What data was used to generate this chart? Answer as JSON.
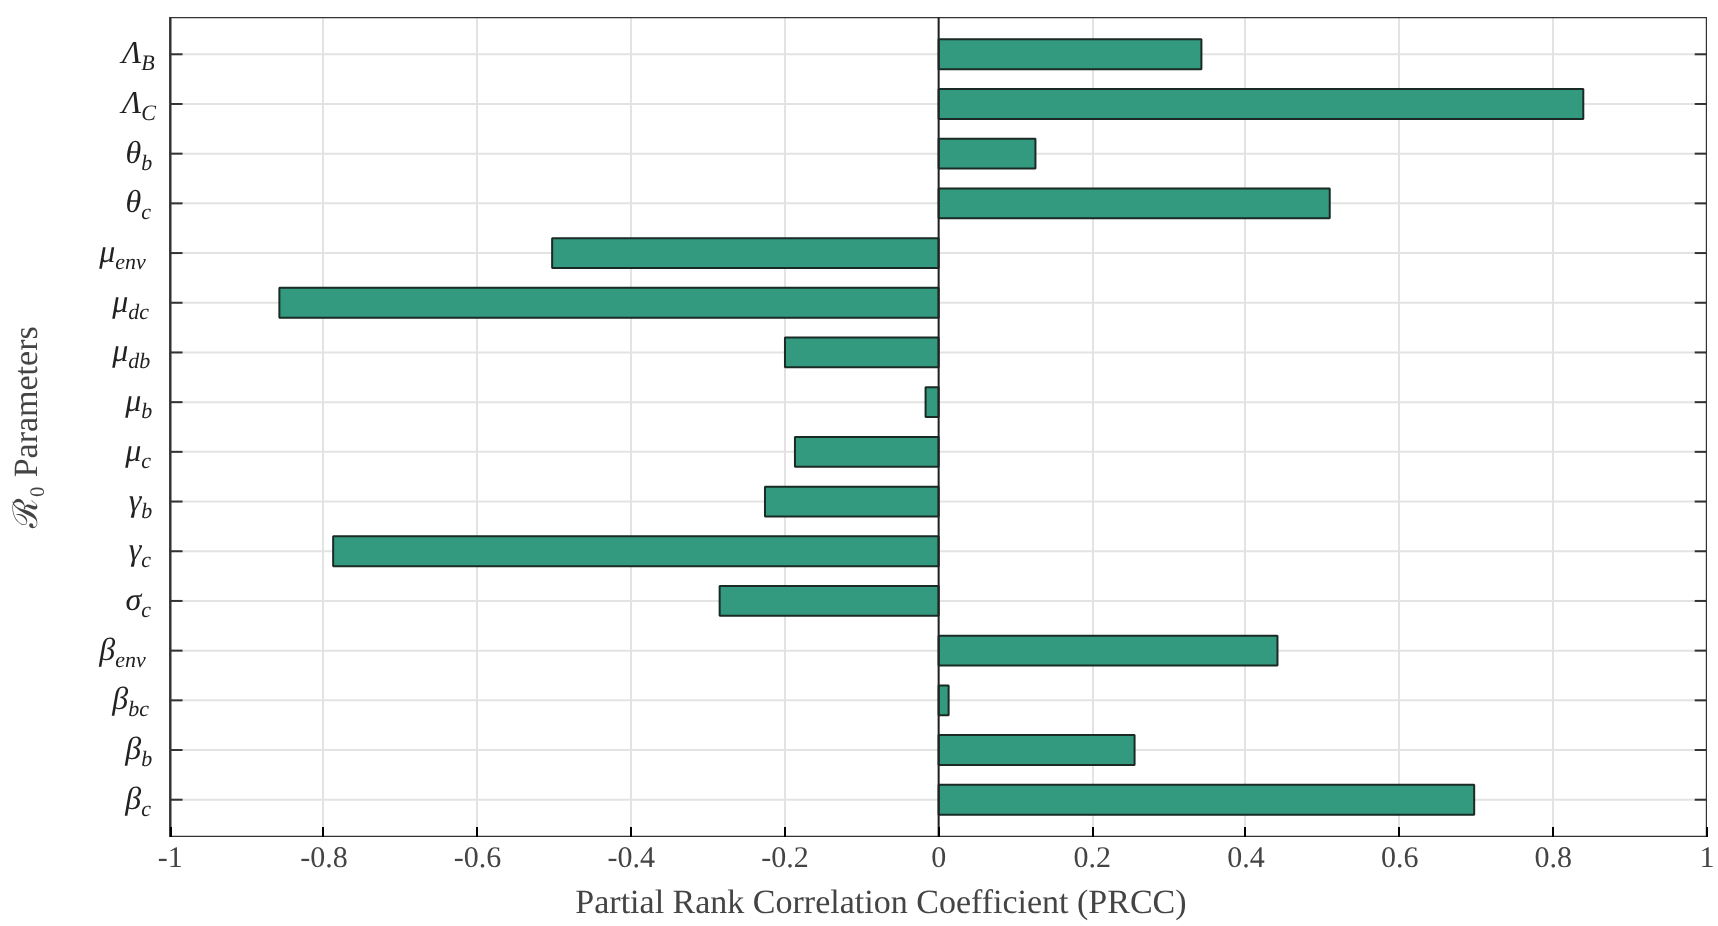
{
  "chart_data": {
    "type": "bar",
    "orientation": "horizontal",
    "xlabel": "Partial Rank Correlation Coefficient (PRCC)",
    "ylabel": "ℛ₀ Parameters",
    "categories": [
      "Λ$_{B}$",
      "Λ$_{C}$",
      "θ$_{b}$",
      "θ$_{c}$",
      "μ$_{env}$",
      "μ$_{dc}$",
      "μ$_{db}$",
      "μ$_{b}$",
      "μ$_{c}$",
      "γ$_{b}$",
      "γ$_{c}$",
      "σ$_{c}$",
      "β$_{env}$",
      "β$_{bc}$",
      "β$_{b}$",
      "β$_{c}$"
    ],
    "values": [
      0.342,
      0.839,
      0.126,
      0.509,
      -0.503,
      -0.858,
      -0.2,
      -0.017,
      -0.187,
      -0.226,
      -0.788,
      -0.285,
      0.441,
      0.013,
      0.255,
      0.697
    ],
    "color": "#339a80",
    "xlim": [
      -1,
      1
    ],
    "xticks": [
      -1,
      -0.8,
      -0.6,
      -0.4,
      -0.2,
      0,
      0.2,
      0.4,
      0.6,
      0.8,
      1
    ],
    "grid": true
  }
}
